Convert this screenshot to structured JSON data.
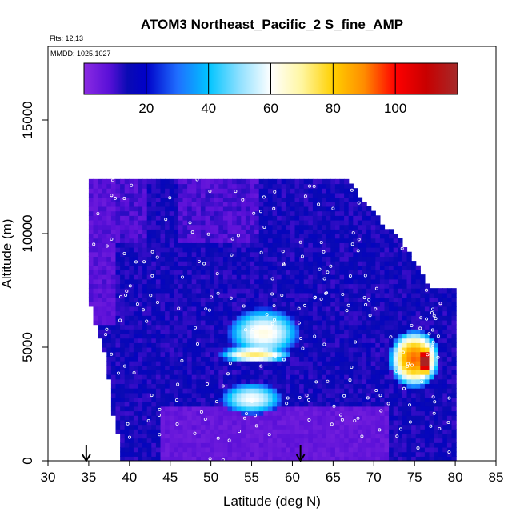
{
  "chart_data": {
    "type": "heatmap",
    "title": "ATOM3 Northeast_Pacific_2 S_fine_AMP",
    "annotations": [
      "Flts: 12,13",
      "MMDD: 1025,1027"
    ],
    "xlabel": "Latitude (deg N)",
    "ylabel": "Altitude (m)",
    "xlim": [
      30,
      85
    ],
    "ylim": [
      0,
      17500
    ],
    "xticks": [
      "30",
      "35",
      "40",
      "45",
      "50",
      "55",
      "60",
      "65",
      "70",
      "75",
      "80",
      "85"
    ],
    "yticks": [
      "0",
      "5000",
      "10000",
      "15000"
    ],
    "colorbar": {
      "min": 0,
      "max": 120,
      "ticks": [
        "20",
        "40",
        "60",
        "80",
        "100"
      ],
      "stops": [
        {
          "v": 0,
          "color": "#8b2be2"
        },
        {
          "v": 8,
          "color": "#5a10d8"
        },
        {
          "v": 14,
          "color": "#0a0ab4"
        },
        {
          "v": 20,
          "color": "#0000c8"
        },
        {
          "v": 30,
          "color": "#1f6eff"
        },
        {
          "v": 40,
          "color": "#00c4ff"
        },
        {
          "v": 50,
          "color": "#8fe0ff"
        },
        {
          "v": 60,
          "color": "#ffffff"
        },
        {
          "v": 70,
          "color": "#fff6a0"
        },
        {
          "v": 80,
          "color": "#ffd000"
        },
        {
          "v": 90,
          "color": "#ff8c00"
        },
        {
          "v": 100,
          "color": "#ff0000"
        },
        {
          "v": 110,
          "color": "#c80000"
        },
        {
          "v": 120,
          "color": "#a52a2a"
        }
      ]
    },
    "coverage": {
      "top_edge": [
        [
          35.5,
          12400
        ],
        [
          66,
          12400
        ],
        [
          67,
          12100
        ],
        [
          68,
          11700
        ],
        [
          69,
          11300
        ],
        [
          70,
          10800
        ],
        [
          71,
          10400
        ],
        [
          73,
          9700
        ],
        [
          74,
          9300
        ],
        [
          75,
          8700
        ],
        [
          76,
          8000
        ],
        [
          77,
          7600
        ],
        [
          80,
          7400
        ]
      ],
      "bottom_lat": [
        35,
        80
      ],
      "left_edge": [
        [
          12400,
          35.5
        ],
        [
          11000,
          35
        ],
        [
          8000,
          35
        ],
        [
          6000,
          36
        ],
        [
          4500,
          37.5
        ],
        [
          2500,
          38
        ],
        [
          1000,
          39
        ],
        [
          0,
          39
        ]
      ]
    },
    "features": [
      {
        "name": "mid-level maximum",
        "lat": [
          52,
          59
        ],
        "alt": [
          4400,
          5000
        ],
        "value": 55
      },
      {
        "name": "upper band",
        "lat": [
          53,
          60
        ],
        "alt": [
          4800,
          6500
        ],
        "value": 45
      },
      {
        "name": "lower band",
        "lat": [
          52,
          58
        ],
        "alt": [
          2200,
          3300
        ],
        "value": 42
      },
      {
        "name": "northern maximum",
        "lat": [
          72.5,
          77.5
        ],
        "alt": [
          3500,
          5500
        ],
        "value": 75
      },
      {
        "name": "northern core",
        "lat": [
          75.5,
          77
        ],
        "alt": [
          3800,
          5000
        ],
        "value": 110
      }
    ],
    "profile_arrows_lat": [
      34.7,
      61
    ]
  }
}
